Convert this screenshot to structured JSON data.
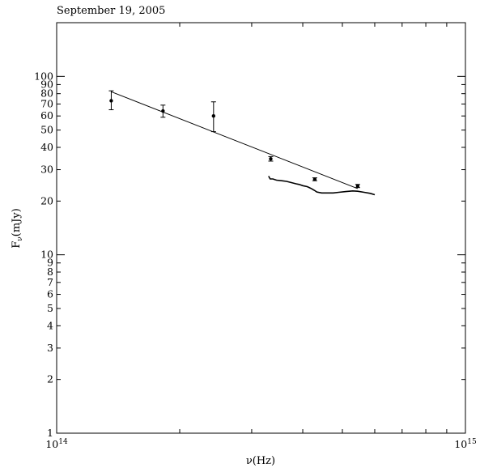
{
  "chart_data": {
    "type": "scatter",
    "title": "September 19, 2005",
    "xlabel": "ν(Hz)",
    "ylabel": "F",
    "ylabel_sub": "ν",
    "ylabel_unit": "(mJy)",
    "x_scale": "log",
    "y_scale": "log",
    "xlim": [
      100000000000000.0,
      1000000000000000.0
    ],
    "ylim": [
      1,
      200
    ],
    "x_ticklabels": [
      {
        "value": 100000000000000.0,
        "base": "10",
        "exp": "14"
      },
      {
        "value": 1000000000000000.0,
        "base": "10",
        "exp": "15"
      }
    ],
    "y_ticklabels": [
      1,
      2,
      3,
      4,
      5,
      6,
      7,
      8,
      9,
      10,
      20,
      30,
      40,
      50,
      60,
      70,
      80,
      90,
      100
    ],
    "grid": false,
    "series": [
      {
        "kind": "points_with_errorbars",
        "points": [
          {
            "x": 136000000000000.0,
            "y": 73,
            "ylow": 65,
            "yhigh": 83
          },
          {
            "x": 182000000000000.0,
            "y": 64,
            "ylow": 59,
            "yhigh": 69
          },
          {
            "x": 242000000000000.0,
            "y": 60,
            "ylow": 49,
            "yhigh": 72
          },
          {
            "x": 334000000000000.0,
            "y": 34.5,
            "ylow": 33.5,
            "yhigh": 35.5
          },
          {
            "x": 428000000000000.0,
            "y": 26.5,
            "ylow": 26,
            "yhigh": 27
          },
          {
            "x": 545000000000000.0,
            "y": 24.3,
            "ylow": 23.8,
            "yhigh": 24.8
          }
        ]
      },
      {
        "kind": "fit_line",
        "points": [
          {
            "x": 136000000000000.0,
            "y": 82
          },
          {
            "x": 545000000000000.0,
            "y": 23.5
          }
        ]
      },
      {
        "kind": "spectrum",
        "points": [
          {
            "x": 330000000000000.0,
            "y": 27.6
          },
          {
            "x": 333000000000000.0,
            "y": 26.6
          },
          {
            "x": 338000000000000.0,
            "y": 26.6
          },
          {
            "x": 345000000000000.0,
            "y": 26.2
          },
          {
            "x": 355000000000000.0,
            "y": 26.0
          },
          {
            "x": 365000000000000.0,
            "y": 25.8
          },
          {
            "x": 375000000000000.0,
            "y": 25.4
          },
          {
            "x": 385000000000000.0,
            "y": 25.0
          },
          {
            "x": 392000000000000.0,
            "y": 24.8
          },
          {
            "x": 400000000000000.0,
            "y": 24.4
          },
          {
            "x": 410000000000000.0,
            "y": 24.1
          },
          {
            "x": 420000000000000.0,
            "y": 23.5
          },
          {
            "x": 428000000000000.0,
            "y": 22.9
          },
          {
            "x": 433000000000000.0,
            "y": 22.5
          },
          {
            "x": 445000000000000.0,
            "y": 22.2
          },
          {
            "x": 460000000000000.0,
            "y": 22.2
          },
          {
            "x": 475000000000000.0,
            "y": 22.2
          },
          {
            "x": 490000000000000.0,
            "y": 22.4
          },
          {
            "x": 510000000000000.0,
            "y": 22.6
          },
          {
            "x": 530000000000000.0,
            "y": 22.8
          },
          {
            "x": 545000000000000.0,
            "y": 22.7
          },
          {
            "x": 565000000000000.0,
            "y": 22.4
          },
          {
            "x": 585000000000000.0,
            "y": 22.1
          },
          {
            "x": 600000000000000.0,
            "y": 21.7
          }
        ]
      }
    ]
  }
}
